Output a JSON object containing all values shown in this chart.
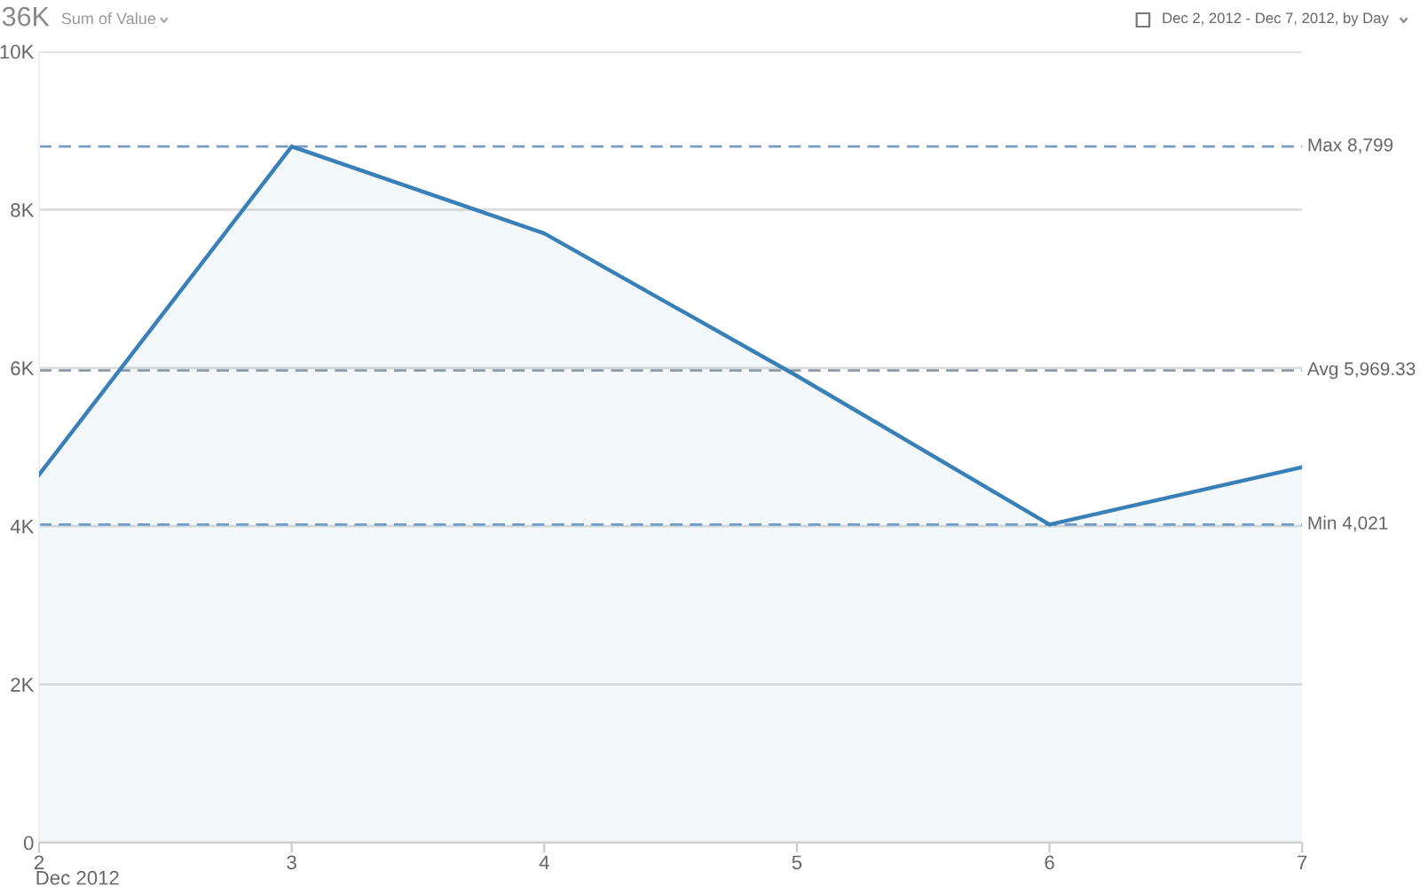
{
  "chart_data": {
    "type": "area",
    "title": "36K",
    "subtitle": "Sum of Value",
    "xlabel": "Dec 2012",
    "annotations": [
      "Dec 2, 2012 - Dec 7, 2012, by Day"
    ],
    "x": [
      "2012-12-02",
      "2012-12-03",
      "2012-12-04",
      "2012-12-05",
      "2012-12-06",
      "2012-12-07"
    ],
    "series": [
      {
        "color": "#3a80b8",
        "values": [
          4650,
          8799,
          7700,
          5900,
          4021,
          4746
        ]
      }
    ],
    "xlim": [
      "2012-12-02",
      "2012-12-07"
    ],
    "xticks": [
      {
        "value": "2012-12-02",
        "label": "2"
      },
      {
        "value": "2012-12-03",
        "label": "3"
      },
      {
        "value": "2012-12-04",
        "label": "4"
      },
      {
        "value": "2012-12-05",
        "label": "5"
      },
      {
        "value": "2012-12-06",
        "label": "6"
      },
      {
        "value": "2012-12-07",
        "label": "7"
      }
    ],
    "ylim": [
      0,
      10000
    ],
    "yticks": [
      0,
      {
        "value": 2000,
        "label": "2K"
      },
      {
        "value": 4000,
        "label": "4K"
      },
      {
        "value": 6000,
        "label": "6K"
      },
      {
        "value": 8000,
        "label": "8K"
      },
      {
        "value": 10000,
        "label": "10K"
      }
    ],
    "ref_lines": [
      {
        "axis": "y",
        "value": 8799,
        "label": "Max 8,799",
        "color": "#7a9cbf",
        "line_style": "dashed"
      },
      {
        "axis": "y",
        "value": 5969.33,
        "label": "Avg 5,969.33",
        "color": "#8c9aa8",
        "line_style": "dashed"
      },
      {
        "axis": "y",
        "value": 4021,
        "label": "Min 4,021",
        "color": "#6f9cc8",
        "line_style": "dashed"
      }
    ],
    "grid": "y",
    "marker": "none",
    "line_style": "solid"
  }
}
